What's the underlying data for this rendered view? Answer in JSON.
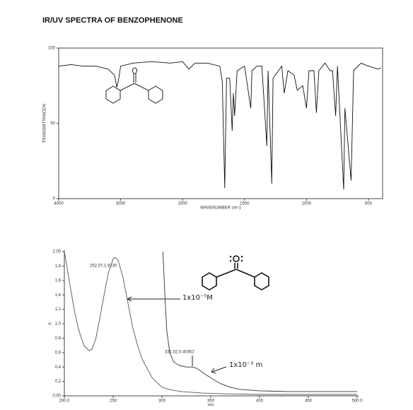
{
  "title": "IR/UV SPECTRA OF BENZOPHENONE",
  "chart_data": [
    {
      "type": "line",
      "x_label": "WAVENUMBER cm-1",
      "y_label": "TRANSMITTANCE%",
      "xlim": [
        4000,
        400
      ],
      "ylim": [
        0,
        100
      ],
      "xticks": [
        4000,
        3000,
        2000,
        1500,
        1000,
        500
      ],
      "yticks": [
        0,
        50,
        100
      ],
      "series": [
        {
          "color": "#111111",
          "x": [
            4000,
            3800,
            3600,
            3400,
            3200,
            3100,
            3060,
            3030,
            3000,
            2800,
            2500,
            2200,
            2000,
            1950,
            1900,
            1800,
            1700,
            1680,
            1660,
            1645,
            1620,
            1600,
            1590,
            1580,
            1560,
            1500,
            1450,
            1440,
            1400,
            1360,
            1320,
            1310,
            1280,
            1270,
            1200,
            1180,
            1150,
            1100,
            1075,
            1030,
            1000,
            980,
            940,
            920,
            900,
            850,
            810,
            790,
            765,
            750,
            700,
            690,
            640,
            620,
            560,
            500,
            420,
            400
          ],
          "values": [
            88,
            89,
            88,
            88,
            86,
            82,
            74,
            80,
            88,
            90,
            91,
            90,
            91,
            86,
            90,
            90,
            88,
            78,
            7,
            80,
            80,
            45,
            70,
            55,
            85,
            88,
            60,
            85,
            88,
            88,
            35,
            85,
            10,
            80,
            88,
            70,
            85,
            82,
            72,
            75,
            60,
            85,
            85,
            57,
            85,
            90,
            85,
            85,
            55,
            88,
            6,
            60,
            12,
            85,
            90,
            88,
            86,
            87
          ]
        }
      ]
    },
    {
      "type": "line",
      "x_label": "nm",
      "y_label": "A",
      "xlim": [
        200,
        500
      ],
      "ylim": [
        0,
        2
      ],
      "xticks": [
        {
          "value": 200,
          "label": "200.0"
        },
        250,
        300,
        350,
        400,
        450,
        {
          "value": 500,
          "label": "500.0"
        }
      ],
      "yticks": [
        {
          "value": 0,
          "label": "0.00"
        },
        0.2,
        0.4,
        0.6,
        0.8,
        {
          "value": 1,
          "label": "1.0"
        },
        1.2,
        1.4,
        1.6,
        1.8,
        {
          "value": 2,
          "label": "2.00"
        }
      ],
      "annotations": [
        "252.07,1.9230",
        "331.02,0.40352",
        "1x10⁻⁵M",
        "1x10⁻³ m"
      ],
      "series": [
        {
          "color": "#555555",
          "x": [
            200,
            205,
            210,
            215,
            220,
            225,
            228,
            232,
            236,
            240,
            245,
            250,
            252,
            255,
            260,
            265,
            270,
            275,
            280,
            290,
            300,
            310,
            320,
            340,
            360,
            400,
            450,
            500
          ],
          "values": [
            2.0,
            1.6,
            1.2,
            0.9,
            0.7,
            0.63,
            0.64,
            0.78,
            1.05,
            1.35,
            1.7,
            1.9,
            1.92,
            1.88,
            1.65,
            1.3,
            0.95,
            0.7,
            0.5,
            0.25,
            0.12,
            0.08,
            0.06,
            0.04,
            0.03,
            0.02,
            0.02,
            0.02
          ]
        },
        {
          "color": "#333333",
          "x": [
            301,
            303,
            305,
            308,
            312,
            318,
            325,
            331,
            336,
            342,
            350,
            360,
            370,
            380,
            400,
            430,
            460,
            500
          ],
          "values": [
            2.0,
            1.4,
            0.9,
            0.6,
            0.47,
            0.42,
            0.4,
            0.4,
            0.38,
            0.32,
            0.25,
            0.17,
            0.12,
            0.09,
            0.07,
            0.06,
            0.06,
            0.06
          ]
        }
      ]
    }
  ]
}
